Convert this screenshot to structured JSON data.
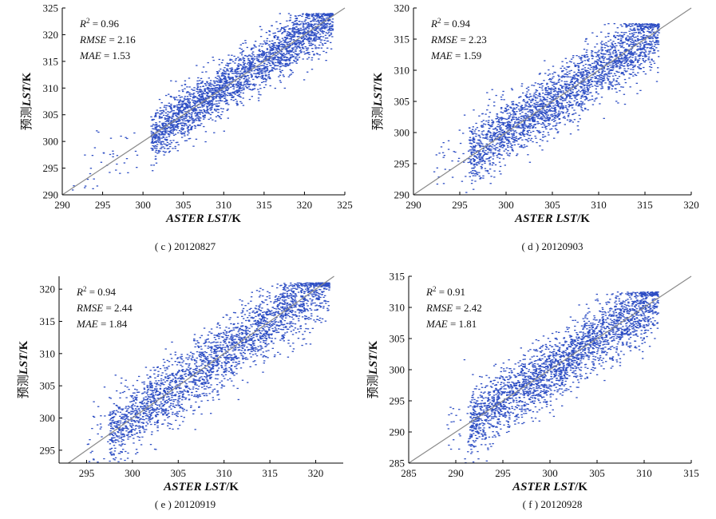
{
  "chart_data": [
    {
      "type": "scatter",
      "caption": "( c ) 20120827",
      "xlabel_italic": "ASTER LST",
      "xlabel_unit": "/K",
      "ylabel_prefix": "预测",
      "ylabel_italic": "LST",
      "ylabel_unit": "/K",
      "xlim": [
        290,
        325
      ],
      "ylim": [
        290,
        325
      ],
      "xticks": [
        290,
        295,
        300,
        305,
        310,
        315,
        320,
        325
      ],
      "yticks": [
        290,
        295,
        300,
        305,
        310,
        315,
        320,
        325
      ],
      "stats": [
        {
          "name": "R",
          "sup": "2",
          "value": " = 0.96"
        },
        {
          "name": "RMSE",
          "sup": "",
          "value": " = 2.16"
        },
        {
          "name": "MAE",
          "sup": "",
          "value": " = 1.53"
        }
      ],
      "reference_line": "1:1",
      "point_color": "#2f4fc4",
      "cloud": {
        "x": [
          301,
          323.5
        ],
        "slope": 1.0,
        "intercept": 0.0,
        "spread": 2.4,
        "ycap": 324,
        "outliers_x": [
          291,
          300
        ]
      }
    },
    {
      "type": "scatter",
      "caption": "( d ) 20120903",
      "xlabel_italic": "ASTER LST",
      "xlabel_unit": "/K",
      "ylabel_prefix": "预测",
      "ylabel_italic": "LST",
      "ylabel_unit": "/K",
      "xlim": [
        290,
        320
      ],
      "ylim": [
        290,
        320
      ],
      "xticks": [
        290,
        295,
        300,
        305,
        310,
        315,
        320
      ],
      "yticks": [
        290,
        295,
        300,
        305,
        310,
        315,
        320
      ],
      "stats": [
        {
          "name": "R",
          "sup": "2",
          "value": " = 0.94"
        },
        {
          "name": "RMSE",
          "sup": "",
          "value": " = 2.23"
        },
        {
          "name": "MAE",
          "sup": "",
          "value": " = 1.59"
        }
      ],
      "reference_line": "1:1",
      "point_color": "#2f4fc4",
      "cloud": {
        "x": [
          296,
          316.5
        ],
        "slope": 1.0,
        "intercept": 0.0,
        "spread": 2.5,
        "ycap": 317.5,
        "outliers_x": [
          292,
          296
        ]
      }
    },
    {
      "type": "scatter",
      "caption": "( e ) 20120919",
      "xlabel_italic": "ASTER LST",
      "xlabel_unit": "/K",
      "ylabel_prefix": "预测",
      "ylabel_italic": "LST",
      "ylabel_unit": "/K",
      "xlim": [
        292,
        323
      ],
      "ylim": [
        293,
        322
      ],
      "xticks": [
        295,
        300,
        305,
        310,
        315,
        320
      ],
      "yticks": [
        295,
        300,
        305,
        310,
        315,
        320
      ],
      "stats": [
        {
          "name": "R",
          "sup": "2",
          "value": " = 0.94"
        },
        {
          "name": "RMSE",
          "sup": "",
          "value": " = 2.44"
        },
        {
          "name": "MAE",
          "sup": "",
          "value": " = 1.84"
        }
      ],
      "reference_line": "1:1",
      "point_color": "#2f4fc4",
      "cloud": {
        "x": [
          297.5,
          321.5
        ],
        "slope": 1.0,
        "intercept": 0.0,
        "spread": 2.6,
        "ycap": 321,
        "outliers_x": [
          295,
          298
        ]
      }
    },
    {
      "type": "scatter",
      "caption": "( f ) 20120928",
      "xlabel_italic": "ASTER LST",
      "xlabel_unit": "/K",
      "ylabel_prefix": "预测",
      "ylabel_italic": "LST",
      "ylabel_unit": "/K",
      "xlim": [
        285,
        315
      ],
      "ylim": [
        285,
        315
      ],
      "xticks": [
        285,
        290,
        295,
        300,
        305,
        310,
        315
      ],
      "yticks": [
        285,
        290,
        295,
        300,
        305,
        310,
        315
      ],
      "stats": [
        {
          "name": "R",
          "sup": "2",
          "value": " = 0.91"
        },
        {
          "name": "RMSE",
          "sup": "",
          "value": " = 2.42"
        },
        {
          "name": "MAE",
          "sup": "",
          "value": " = 1.81"
        }
      ],
      "reference_line": "1:1",
      "point_color": "#2f4fc4",
      "cloud": {
        "x": [
          291.5,
          311.5
        ],
        "slope": 1.0,
        "intercept": 0.0,
        "spread": 2.6,
        "ycap": 312.5,
        "outliers_x": [
          289,
          292
        ]
      }
    }
  ]
}
